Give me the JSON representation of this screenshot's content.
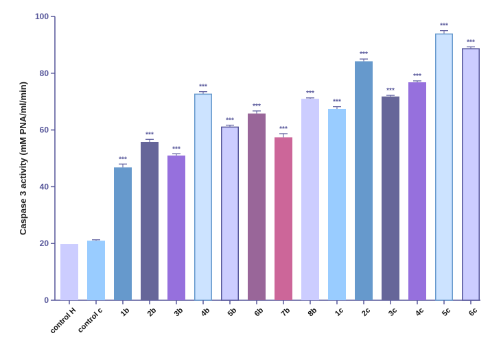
{
  "chart_data": {
    "type": "bar",
    "title": "",
    "xlabel": "",
    "ylabel": "Caspase 3 activity (mM PNA/ml/min)",
    "ylim": [
      0,
      100
    ],
    "yticks": [
      0,
      20,
      40,
      60,
      80,
      100
    ],
    "grid": false,
    "legend": "none",
    "axis_color": "#555599",
    "categories": [
      "control H",
      "control c",
      "1b",
      "2b",
      "3b",
      "4b",
      "5b",
      "6b",
      "7b",
      "8b",
      "1c",
      "2c",
      "3c",
      "4c",
      "5c",
      "6c"
    ],
    "values": [
      19.8,
      21.0,
      46.8,
      55.8,
      51.0,
      72.8,
      61.2,
      65.8,
      57.4,
      71.0,
      67.4,
      84.2,
      71.8,
      76.8,
      94.0,
      88.8
    ],
    "errors": [
      0.0,
      0.3,
      1.2,
      0.9,
      0.6,
      0.7,
      0.5,
      0.9,
      1.3,
      0.3,
      0.8,
      0.8,
      0.4,
      0.5,
      1.0,
      0.5
    ],
    "annotations": [
      "",
      "",
      "***",
      "***",
      "***",
      "***",
      "***",
      "***",
      "***",
      "***",
      "***",
      "***",
      "***",
      "***",
      "***",
      "***"
    ],
    "bar_fill": [
      "#cccdff",
      "#99ccff",
      "#6699cc",
      "#666699",
      "#9670dd",
      "#cce3ff",
      "#cccdff",
      "#996699",
      "#cc6699",
      "#cccdff",
      "#99ccff",
      "#6699cc",
      "#666699",
      "#9670dd",
      "#cce3ff",
      "#cccdff"
    ],
    "bar_stroke": [
      "none",
      "none",
      "none",
      "none",
      "none",
      "#6699cc",
      "#555599",
      "none",
      "none",
      "none",
      "none",
      "none",
      "none",
      "none",
      "#6699cc",
      "#555599"
    ]
  }
}
